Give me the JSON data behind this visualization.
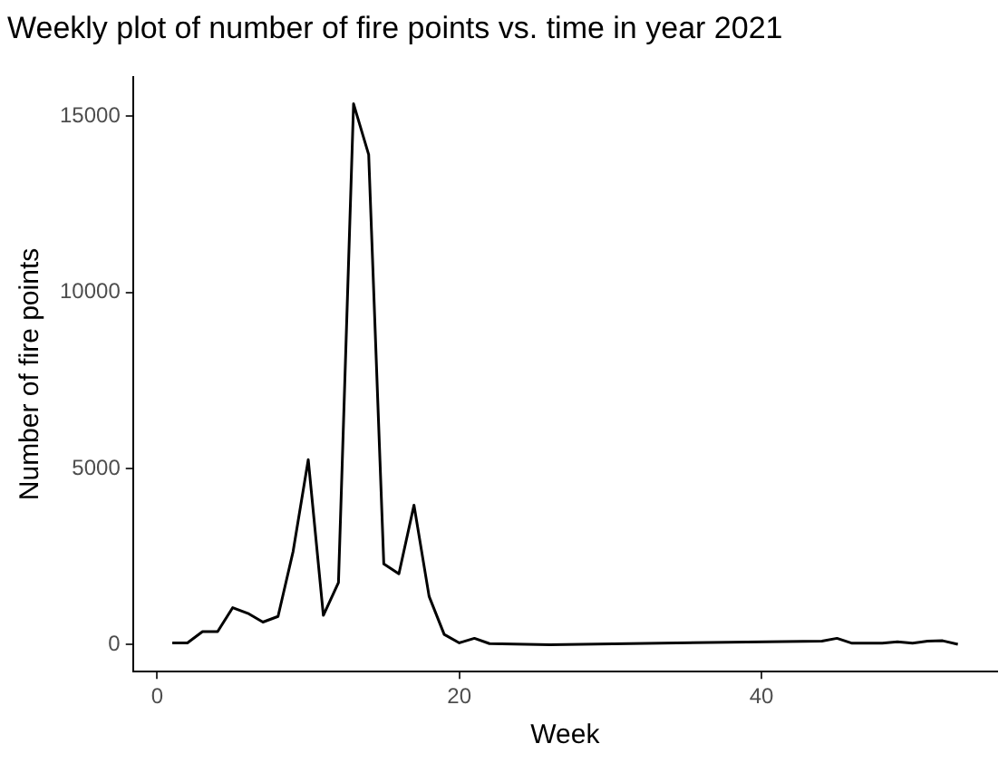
{
  "chart_data": {
    "type": "line",
    "title": "Weekly plot of number of fire points vs. time in year 2021",
    "xlabel": "Week",
    "ylabel": "Number of fire points",
    "x": [
      1,
      2,
      3,
      4,
      5,
      6,
      7,
      8,
      9,
      10,
      11,
      12,
      13,
      14,
      15,
      16,
      17,
      18,
      19,
      20,
      21,
      22,
      26,
      44,
      45,
      46,
      47,
      48,
      49,
      50,
      51,
      52,
      53
    ],
    "series": [
      {
        "color": "#000000",
        "values": [
          50,
          50,
          370,
          370,
          1050,
          890,
          640,
          800,
          2650,
          5250,
          830,
          1760,
          15350,
          13910,
          2290,
          2010,
          3960,
          1370,
          290,
          50,
          180,
          30,
          0,
          100,
          180,
          40,
          40,
          40,
          80,
          40,
          100,
          110,
          10
        ]
      }
    ],
    "xlim": [
      -1.6,
      55.6
    ],
    "xticks": [
      0,
      20,
      40
    ],
    "ylim": [
      -767,
      16117
    ],
    "yticks": [
      0,
      5000,
      10000,
      15000
    ],
    "grid": false,
    "legend": false,
    "marker": "none",
    "line_style": "solid"
  }
}
